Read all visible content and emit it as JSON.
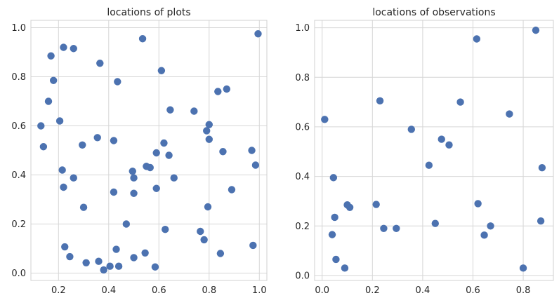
{
  "colors": {
    "point": "#4c72b0"
  },
  "chart_data": [
    {
      "type": "scatter",
      "title": "locations of plots",
      "xlim": [
        0.09,
        1.03
      ],
      "ylim": [
        -0.03,
        1.03
      ],
      "xticks": [
        0.2,
        0.4,
        0.6,
        0.8,
        1.0
      ],
      "xtick_labels": [
        "0.2",
        "0.4",
        "0.6",
        "0.8",
        "1.0"
      ],
      "yticks": [
        0.0,
        0.2,
        0.4,
        0.6,
        0.8,
        1.0
      ],
      "ytick_labels": [
        "0.0",
        "0.2",
        "0.4",
        "0.6",
        "0.8",
        "1.0"
      ],
      "grid": true,
      "points": [
        [
          0.13,
          0.6
        ],
        [
          0.14,
          0.515
        ],
        [
          0.16,
          0.7
        ],
        [
          0.17,
          0.885
        ],
        [
          0.18,
          0.785
        ],
        [
          0.205,
          0.62
        ],
        [
          0.215,
          0.42
        ],
        [
          0.22,
          0.92
        ],
        [
          0.22,
          0.35
        ],
        [
          0.225,
          0.107
        ],
        [
          0.245,
          0.067
        ],
        [
          0.26,
          0.915
        ],
        [
          0.26,
          0.388
        ],
        [
          0.295,
          0.522
        ],
        [
          0.3,
          0.268
        ],
        [
          0.31,
          0.042
        ],
        [
          0.355,
          0.552
        ],
        [
          0.36,
          0.048
        ],
        [
          0.365,
          0.855
        ],
        [
          0.38,
          0.013
        ],
        [
          0.405,
          0.028
        ],
        [
          0.42,
          0.54
        ],
        [
          0.42,
          0.33
        ],
        [
          0.43,
          0.097
        ],
        [
          0.435,
          0.78
        ],
        [
          0.44,
          0.028
        ],
        [
          0.47,
          0.2
        ],
        [
          0.495,
          0.415
        ],
        [
          0.5,
          0.388
        ],
        [
          0.5,
          0.325
        ],
        [
          0.5,
          0.063
        ],
        [
          0.535,
          0.955
        ],
        [
          0.545,
          0.082
        ],
        [
          0.55,
          0.435
        ],
        [
          0.565,
          0.43
        ],
        [
          0.585,
          0.025
        ],
        [
          0.59,
          0.49
        ],
        [
          0.59,
          0.345
        ],
        [
          0.61,
          0.825
        ],
        [
          0.62,
          0.53
        ],
        [
          0.625,
          0.178
        ],
        [
          0.64,
          0.48
        ],
        [
          0.645,
          0.665
        ],
        [
          0.66,
          0.388
        ],
        [
          0.74,
          0.66
        ],
        [
          0.765,
          0.17
        ],
        [
          0.78,
          0.136
        ],
        [
          0.79,
          0.58
        ],
        [
          0.795,
          0.27
        ],
        [
          0.8,
          0.545
        ],
        [
          0.8,
          0.605
        ],
        [
          0.835,
          0.74
        ],
        [
          0.845,
          0.08
        ],
        [
          0.855,
          0.495
        ],
        [
          0.87,
          0.75
        ],
        [
          0.89,
          0.34
        ],
        [
          0.97,
          0.5
        ],
        [
          0.975,
          0.113
        ],
        [
          0.985,
          0.44
        ],
        [
          0.995,
          0.975
        ]
      ]
    },
    {
      "type": "scatter",
      "title": "locations of observations",
      "xlim": [
        -0.03,
        0.92
      ],
      "ylim": [
        -0.02,
        1.03
      ],
      "xticks": [
        0.0,
        0.2,
        0.4,
        0.6,
        0.8
      ],
      "xtick_labels": [
        "0.0",
        "0.2",
        "0.4",
        "0.6",
        "0.8"
      ],
      "yticks": [
        0.0,
        0.2,
        0.4,
        0.6,
        0.8,
        1.0
      ],
      "ytick_labels": [
        "0.0",
        "0.2",
        "0.4",
        "0.6",
        "0.8",
        "1.0"
      ],
      "grid": true,
      "points": [
        [
          0.01,
          0.63
        ],
        [
          0.04,
          0.165
        ],
        [
          0.045,
          0.395
        ],
        [
          0.05,
          0.235
        ],
        [
          0.055,
          0.065
        ],
        [
          0.09,
          0.03
        ],
        [
          0.1,
          0.285
        ],
        [
          0.11,
          0.275
        ],
        [
          0.215,
          0.287
        ],
        [
          0.23,
          0.705
        ],
        [
          0.245,
          0.19
        ],
        [
          0.295,
          0.19
        ],
        [
          0.355,
          0.59
        ],
        [
          0.425,
          0.445
        ],
        [
          0.45,
          0.21
        ],
        [
          0.475,
          0.55
        ],
        [
          0.505,
          0.527
        ],
        [
          0.55,
          0.7
        ],
        [
          0.615,
          0.955
        ],
        [
          0.62,
          0.29
        ],
        [
          0.645,
          0.163
        ],
        [
          0.67,
          0.2
        ],
        [
          0.745,
          0.652
        ],
        [
          0.8,
          0.03
        ],
        [
          0.85,
          0.99
        ],
        [
          0.87,
          0.22
        ],
        [
          0.875,
          0.435
        ]
      ]
    }
  ]
}
